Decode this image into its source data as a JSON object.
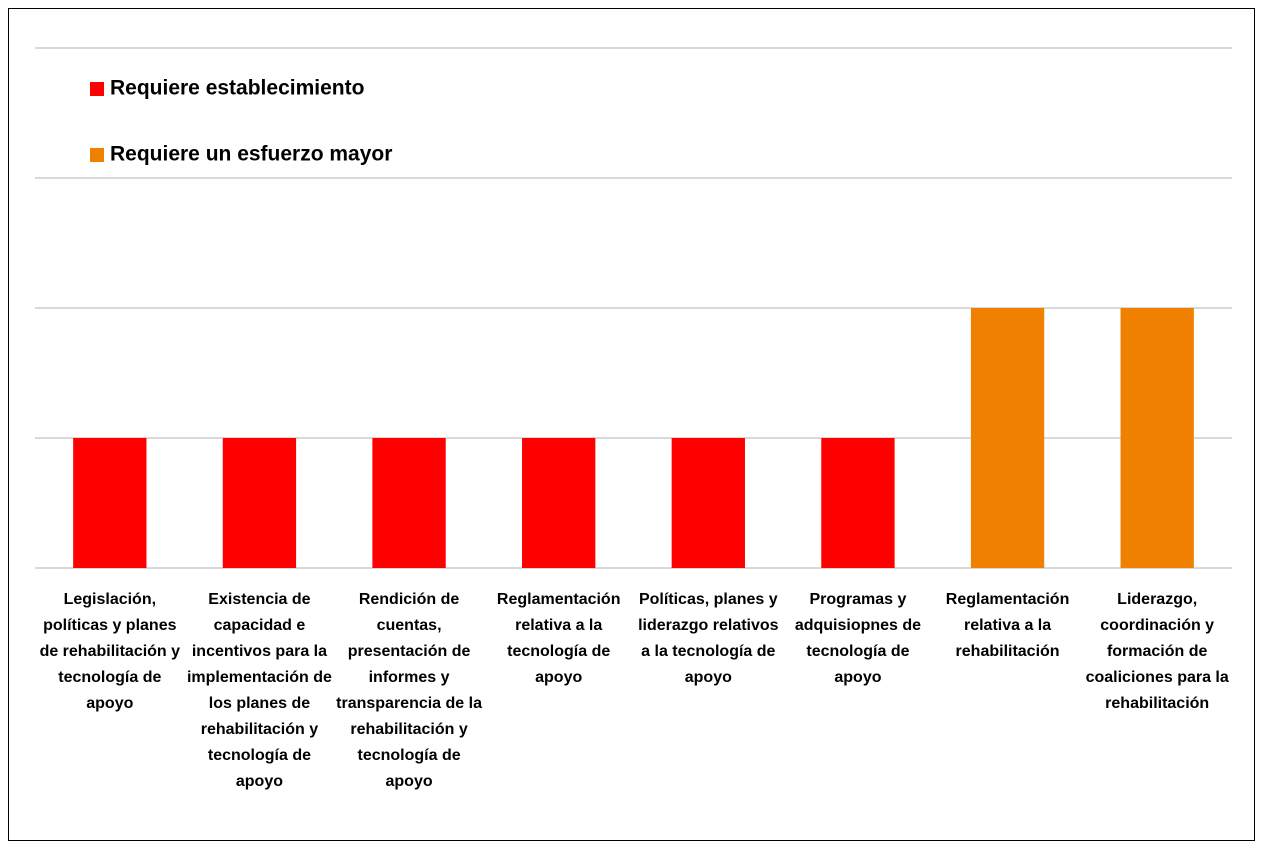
{
  "chart_data": {
    "type": "bar",
    "categories": [
      "Legislación, políticas y planes de rehabilitación y tecnología de apoyo",
      "Existencia de capacidad e incentivos para la implementación de los planes de rehabilitación y tecnología de apoyo",
      "Rendición de cuentas, presentación de informes y transparencia de la rehabilitación y tecnología de apoyo",
      "Reglamentación relativa a la tecnología de apoyo",
      "Políticas, planes y liderazgo relativos a la tecnología de apoyo",
      "Programas y adquisiopnes de tecnología de apoyo",
      "Reglamentación relativa a la rehabilitación",
      "Liderazgo, coordinación y formación de coaliciones para la rehabilitación"
    ],
    "series": [
      {
        "name": "Requiere establecimiento",
        "color": "#ff0000",
        "values": [
          1,
          1,
          1,
          1,
          1,
          1,
          null,
          null
        ]
      },
      {
        "name": "Requiere un esfuerzo mayor",
        "color": "#f08000",
        "values": [
          null,
          null,
          null,
          null,
          null,
          null,
          2,
          2
        ]
      }
    ],
    "ylim": [
      0,
      4
    ],
    "yticks": [
      0,
      1,
      2,
      3,
      4
    ],
    "grid": true,
    "legend": "top-left"
  }
}
